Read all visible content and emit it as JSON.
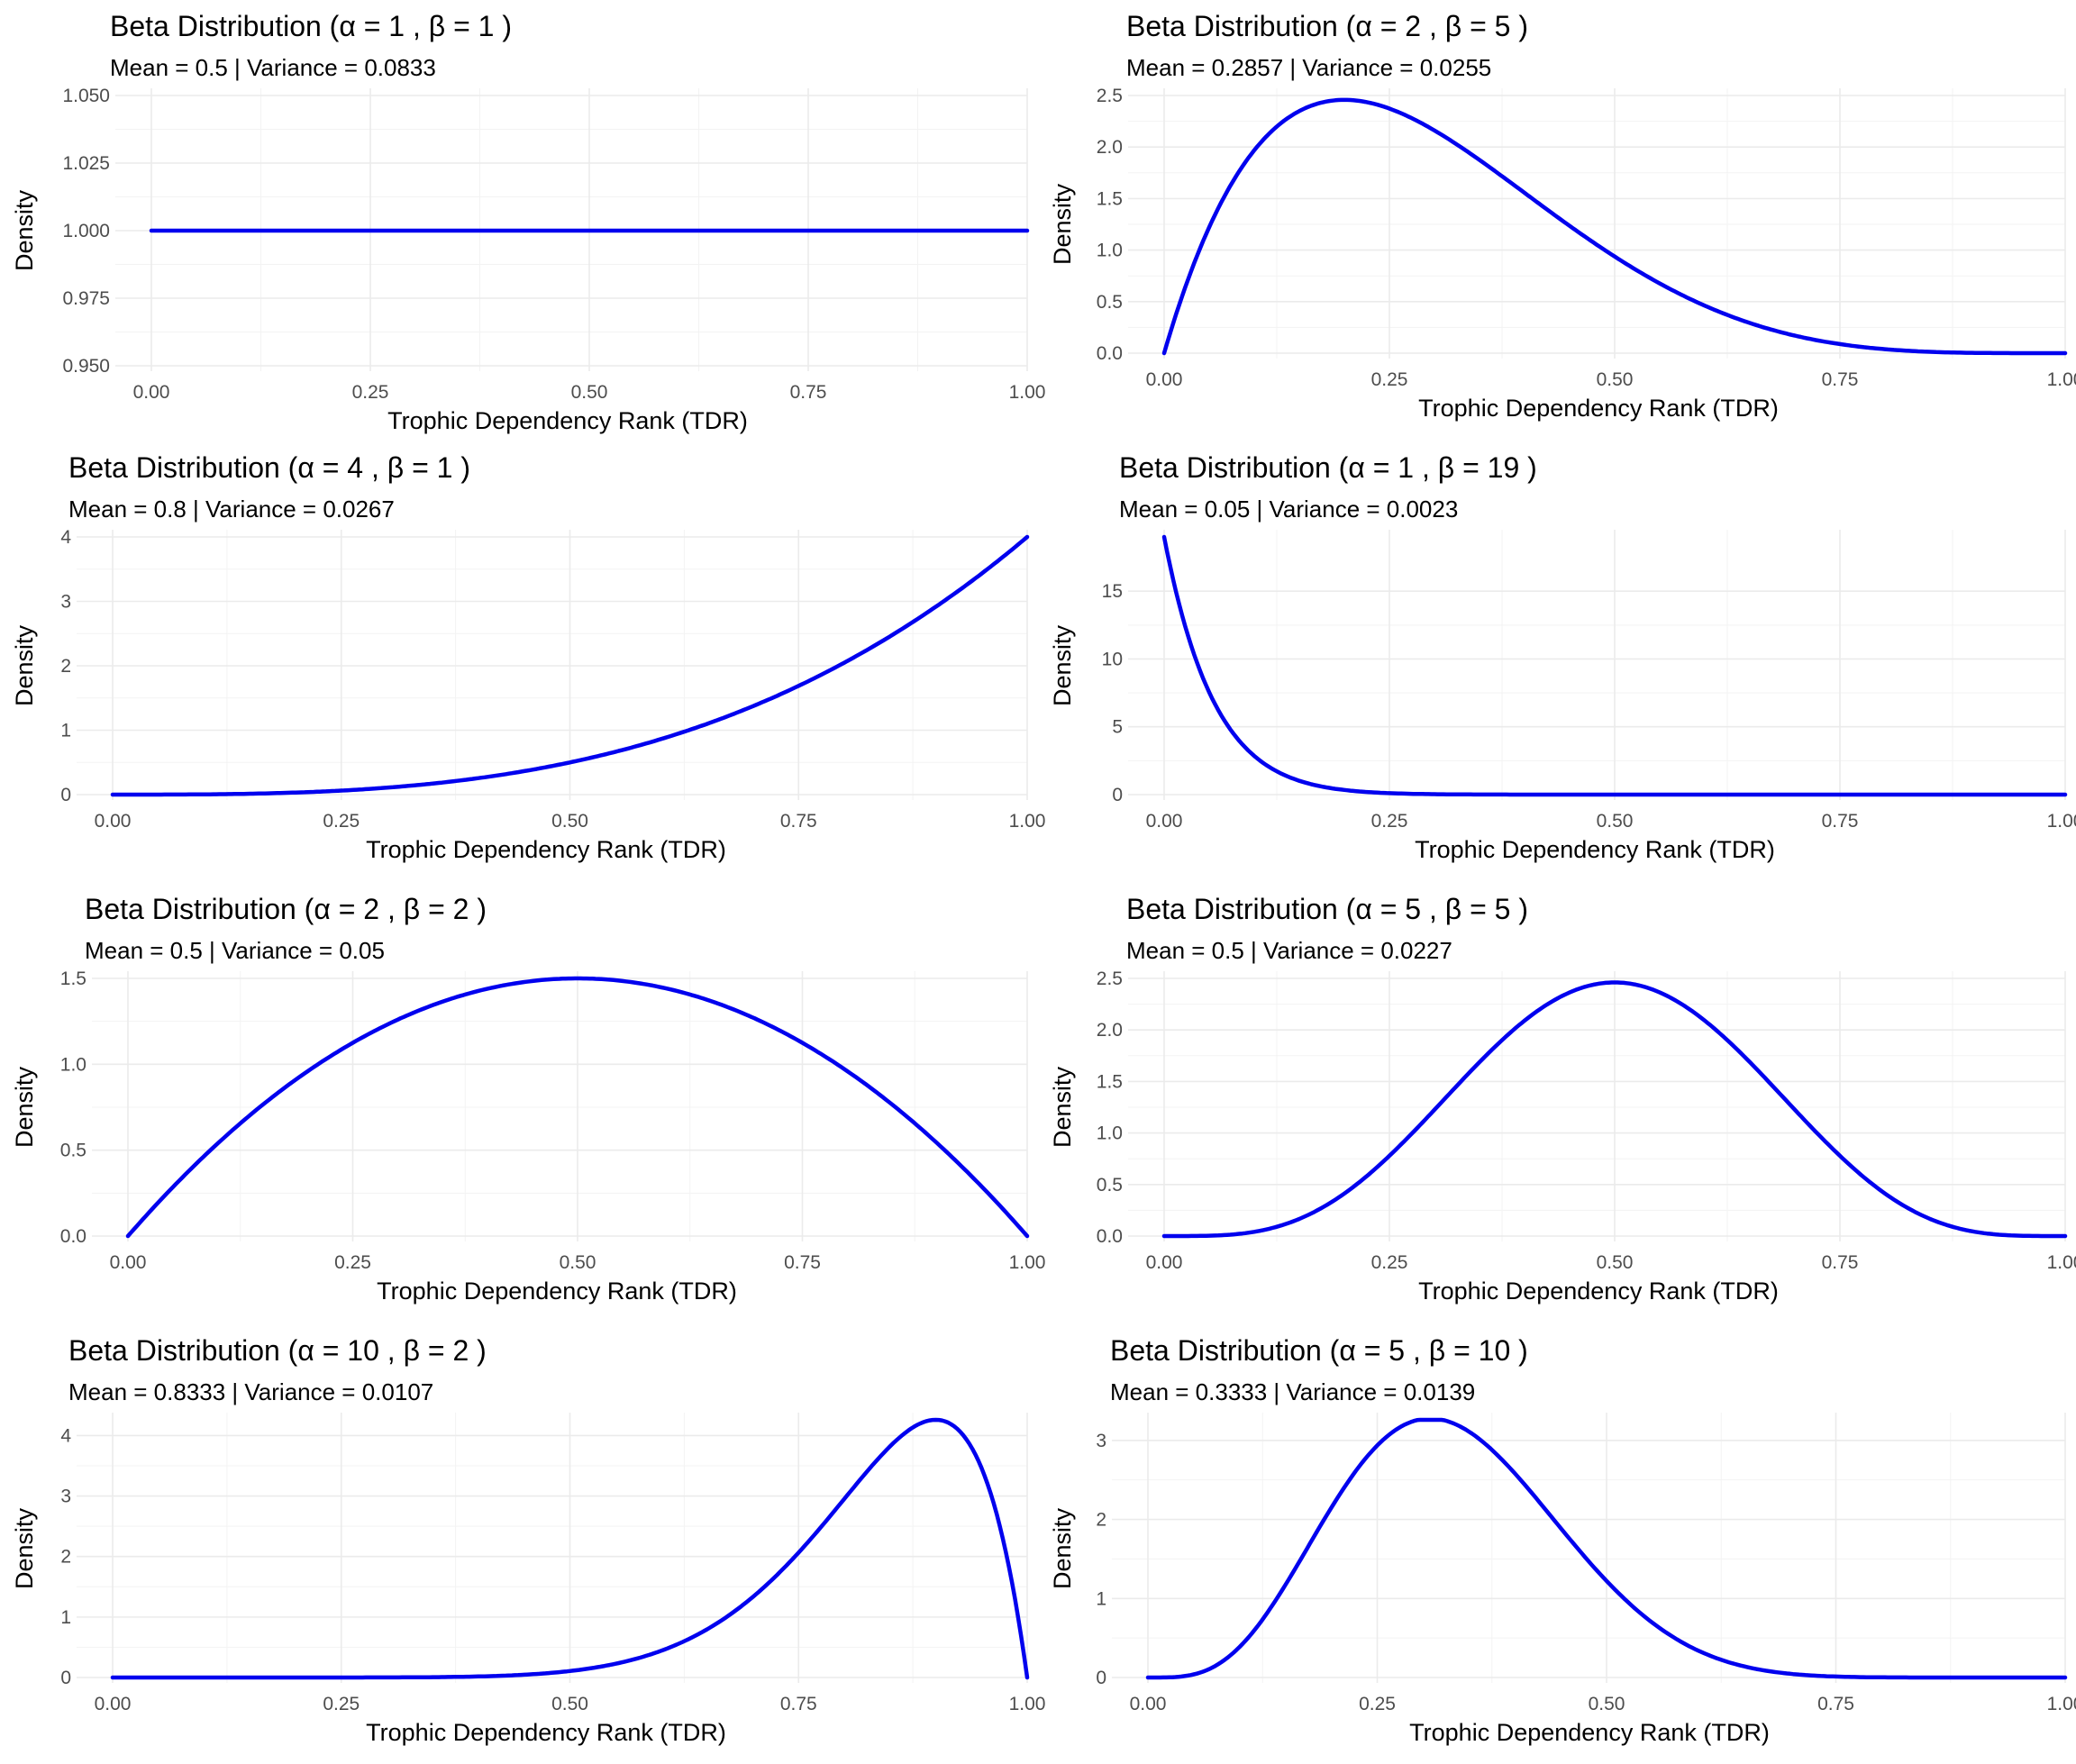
{
  "chart_data": [
    {
      "type": "line",
      "title": "Beta Distribution (α = 1 , β = 1 )",
      "subtitle": "Mean = 0.5 | Variance = 0.0833",
      "xlabel": "Trophic Dependency Rank (TDR)",
      "ylabel": "Density",
      "alpha": 1,
      "beta": 1,
      "xlim": [
        0,
        1
      ],
      "ylim": [
        0.95,
        1.05
      ],
      "xticks": [
        "0.00",
        "0.25",
        "0.50",
        "0.75",
        "1.00"
      ],
      "yticks": [
        "0.950",
        "0.975",
        "1.000",
        "1.025",
        "1.050"
      ],
      "series": [
        {
          "x": [
            0,
            1
          ],
          "y": [
            1.0,
            1.0
          ]
        }
      ],
      "grid": true
    },
    {
      "type": "line",
      "title": "Beta Distribution (α = 2 , β = 5 )",
      "subtitle": "Mean = 0.2857 | Variance = 0.0255",
      "xlabel": "Trophic Dependency Rank (TDR)",
      "ylabel": "Density",
      "alpha": 2,
      "beta": 5,
      "xlim": [
        0,
        1
      ],
      "ylim": [
        0,
        2.5
      ],
      "xticks": [
        "0.00",
        "0.25",
        "0.50",
        "0.75",
        "1.00"
      ],
      "yticks": [
        "0.0",
        "0.5",
        "1.0",
        "1.5",
        "2.0",
        "2.5"
      ],
      "series": [
        {
          "x": [
            0,
            0.05,
            0.1,
            0.15,
            0.2,
            0.25,
            0.3,
            0.4,
            0.5,
            0.6,
            0.7,
            0.8,
            0.9,
            1.0
          ],
          "y": [
            0,
            1.22,
            1.97,
            2.34,
            2.46,
            2.37,
            2.16,
            1.56,
            0.94,
            0.46,
            0.17,
            0.04,
            0.003,
            0
          ]
        }
      ],
      "grid": true
    },
    {
      "type": "line",
      "title": "Beta Distribution (α = 4 , β = 1 )",
      "subtitle": "Mean = 0.8 | Variance = 0.0267",
      "xlabel": "Trophic Dependency Rank (TDR)",
      "ylabel": "Density",
      "alpha": 4,
      "beta": 1,
      "xlim": [
        0,
        1
      ],
      "ylim": [
        0,
        4
      ],
      "xticks": [
        "0.00",
        "0.25",
        "0.50",
        "0.75",
        "1.00"
      ],
      "yticks": [
        "0",
        "1",
        "2",
        "3",
        "4"
      ],
      "series": [
        {
          "x": [
            0,
            0.25,
            0.5,
            0.6,
            0.7,
            0.75,
            0.8,
            0.9,
            1.0
          ],
          "y": [
            0,
            0.0625,
            0.5,
            0.86,
            1.37,
            1.69,
            2.05,
            2.92,
            4.0
          ]
        }
      ],
      "grid": true
    },
    {
      "type": "line",
      "title": "Beta Distribution (α = 1 , β = 19 )",
      "subtitle": "Mean = 0.05 | Variance = 0.0023",
      "xlabel": "Trophic Dependency Rank (TDR)",
      "ylabel": "Density",
      "alpha": 1,
      "beta": 19,
      "xlim": [
        0,
        1
      ],
      "ylim": [
        0,
        19
      ],
      "xticks": [
        "0.00",
        "0.25",
        "0.50",
        "0.75",
        "1.00"
      ],
      "yticks": [
        "0",
        "5",
        "10",
        "15"
      ],
      "series": [
        {
          "x": [
            0,
            0.025,
            0.05,
            0.1,
            0.15,
            0.2,
            0.25,
            0.3,
            0.5,
            1.0
          ],
          "y": [
            19,
            11.6,
            7.1,
            2.57,
            0.87,
            0.27,
            0.08,
            0.02,
            0,
            0
          ]
        }
      ],
      "grid": true
    },
    {
      "type": "line",
      "title": "Beta Distribution (α = 2 , β = 2 )",
      "subtitle": "Mean = 0.5 | Variance = 0.05",
      "xlabel": "Trophic Dependency Rank (TDR)",
      "ylabel": "Density",
      "alpha": 2,
      "beta": 2,
      "xlim": [
        0,
        1
      ],
      "ylim": [
        0,
        1.5
      ],
      "xticks": [
        "0.00",
        "0.25",
        "0.50",
        "0.75",
        "1.00"
      ],
      "yticks": [
        "0.0",
        "0.5",
        "1.0",
        "1.5"
      ],
      "series": [
        {
          "x": [
            0,
            0.125,
            0.25,
            0.375,
            0.5,
            0.625,
            0.75,
            0.875,
            1.0
          ],
          "y": [
            0,
            0.66,
            1.125,
            1.41,
            1.5,
            1.41,
            1.125,
            0.66,
            0
          ]
        }
      ],
      "grid": true
    },
    {
      "type": "line",
      "title": "Beta Distribution (α = 5 , β = 5 )",
      "subtitle": "Mean = 0.5 | Variance = 0.0227",
      "xlabel": "Trophic Dependency Rank (TDR)",
      "ylabel": "Density",
      "alpha": 5,
      "beta": 5,
      "xlim": [
        0,
        1
      ],
      "ylim": [
        0,
        2.5
      ],
      "xticks": [
        "0.00",
        "0.25",
        "0.50",
        "0.75",
        "1.00"
      ],
      "yticks": [
        "0.0",
        "0.5",
        "1.0",
        "1.5",
        "2.0",
        "2.5"
      ],
      "series": [
        {
          "x": [
            0,
            0.1,
            0.2,
            0.3,
            0.4,
            0.5,
            0.6,
            0.7,
            0.8,
            0.9,
            1.0
          ],
          "y": [
            0,
            0.04,
            0.42,
            1.27,
            2.15,
            2.46,
            2.15,
            1.27,
            0.42,
            0.04,
            0
          ]
        }
      ],
      "grid": true
    },
    {
      "type": "line",
      "title": "Beta Distribution (α = 10 , β = 2 )",
      "subtitle": "Mean = 0.8333 | Variance = 0.0107",
      "xlabel": "Trophic Dependency Rank (TDR)",
      "ylabel": "Density",
      "alpha": 10,
      "beta": 2,
      "xlim": [
        0,
        1
      ],
      "ylim": [
        0,
        4.26
      ],
      "xticks": [
        "0.00",
        "0.25",
        "0.50",
        "0.75",
        "1.00"
      ],
      "yticks": [
        "0",
        "1",
        "2",
        "3",
        "4"
      ],
      "series": [
        {
          "x": [
            0,
            0.25,
            0.5,
            0.6,
            0.7,
            0.75,
            0.8,
            0.85,
            0.9,
            0.95,
            1.0
          ],
          "y": [
            0,
            0.0,
            0.11,
            0.53,
            1.86,
            2.06,
            3.54,
            4.04,
            4.26,
            3.28,
            0
          ]
        }
      ],
      "grid": true
    },
    {
      "type": "line",
      "title": "Beta Distribution (α = 5 , β = 10 )",
      "subtitle": "Mean = 0.3333 | Variance = 0.0139",
      "xlabel": "Trophic Dependency Rank (TDR)",
      "ylabel": "Density",
      "alpha": 5,
      "beta": 10,
      "xlim": [
        0,
        1
      ],
      "ylim": [
        0,
        3.26
      ],
      "xticks": [
        "0.00",
        "0.25",
        "0.50",
        "0.75",
        "1.00"
      ],
      "yticks": [
        "0",
        "1",
        "2",
        "3"
      ],
      "series": [
        {
          "x": [
            0,
            0.1,
            0.2,
            0.3,
            0.4,
            0.5,
            0.6,
            0.7,
            0.8,
            1.0
          ],
          "y": [
            0,
            0.54,
            2.15,
            3.23,
            2.69,
            1.28,
            0.37,
            0.06,
            0.0,
            0
          ]
        }
      ],
      "grid": true
    }
  ],
  "colors": {
    "curve": "#0000ee",
    "grid_major": "#ebebeb",
    "grid_minor": "#f3f3f3",
    "tick_text": "#4d4d4d"
  }
}
